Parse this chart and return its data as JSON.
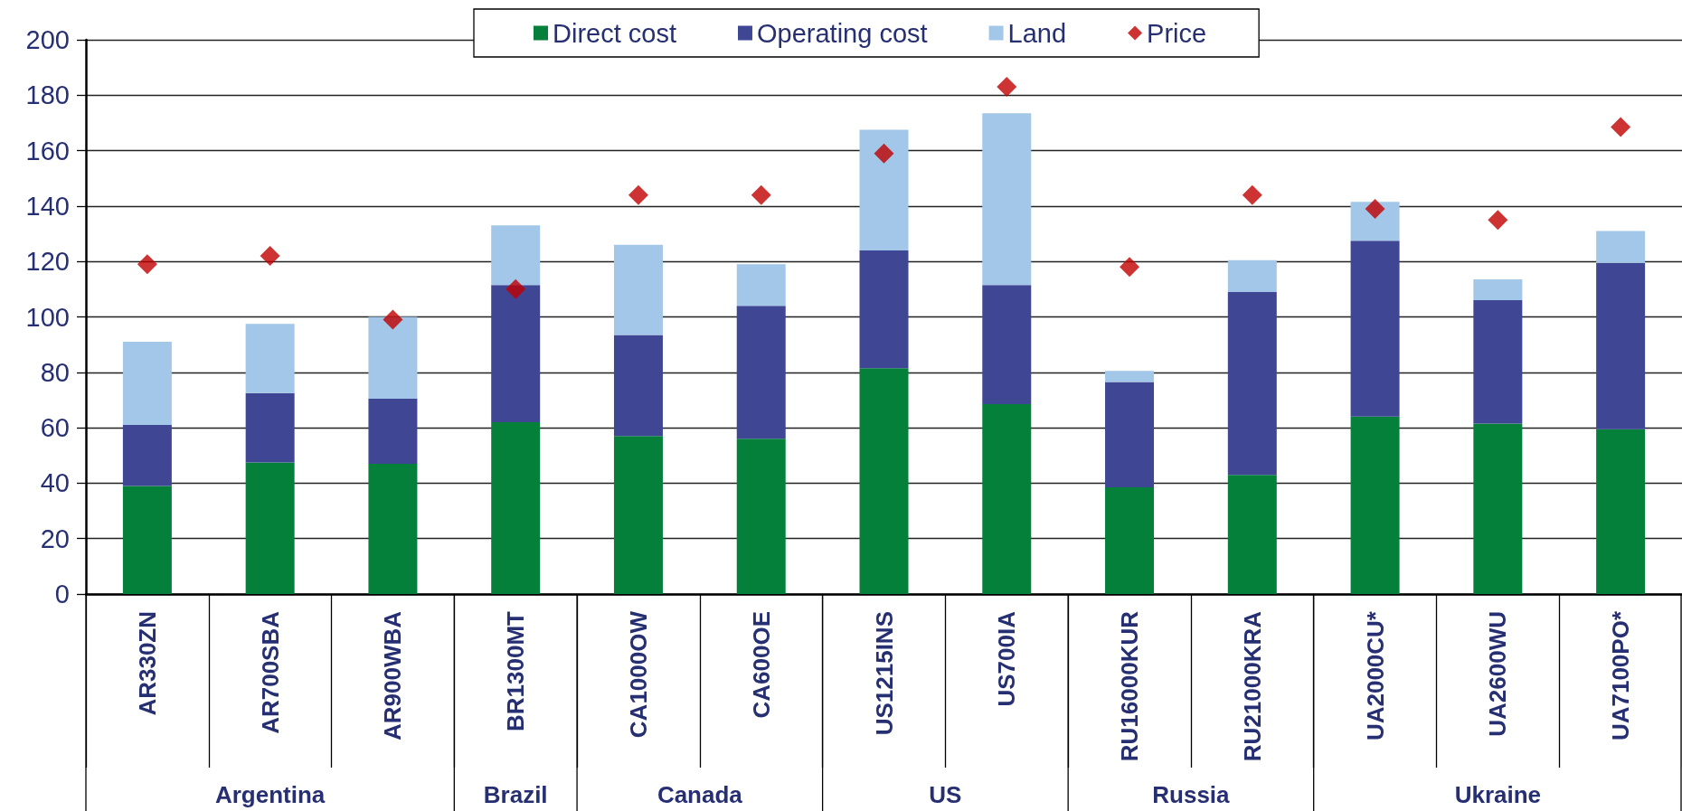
{
  "chart_data": {
    "type": "bar",
    "stacked": true,
    "categories": [
      "AR330ZN",
      "AR700SBA",
      "AR900WBA",
      "BR1300MT",
      "CA1000OW",
      "CA600OE",
      "US1215INS",
      "US700IA",
      "RU16000KUR",
      "RU21000KRA",
      "UA2000CU*",
      "UA2600WU",
      "UA7100PO*"
    ],
    "series": [
      {
        "name": "Direct cost",
        "color": "#04803a",
        "values": [
          39,
          47.5,
          47,
          62,
          57,
          56,
          81.5,
          68.5,
          38.5,
          43,
          64,
          61.5,
          59.5
        ]
      },
      {
        "name": "Operating cost",
        "color": "#3f4794",
        "values": [
          22,
          25,
          23.5,
          49.5,
          36.5,
          48,
          42.5,
          43,
          38,
          66,
          63.5,
          44.5,
          60
        ]
      },
      {
        "name": "Land",
        "color": "#a2c7e8",
        "values": [
          30,
          25,
          29.5,
          21.5,
          32.5,
          15,
          43.5,
          62,
          4,
          11.5,
          14,
          7.5,
          11.5
        ]
      },
      {
        "name": "Price",
        "type": "scatter",
        "marker": "diamond",
        "color": "#c00000",
        "values": [
          119,
          122,
          99,
          110,
          144,
          144,
          159,
          183,
          118,
          144,
          139,
          135,
          168.5
        ]
      }
    ],
    "ylim": [
      0,
      200
    ],
    "yticks": [
      0,
      20,
      40,
      60,
      80,
      100,
      120,
      140,
      160,
      180,
      200
    ],
    "grid": "y",
    "legend": "top",
    "annotations": [
      "Argentina",
      "Brazil",
      "Canada",
      "US",
      "Russia",
      "Ukraine"
    ]
  }
}
